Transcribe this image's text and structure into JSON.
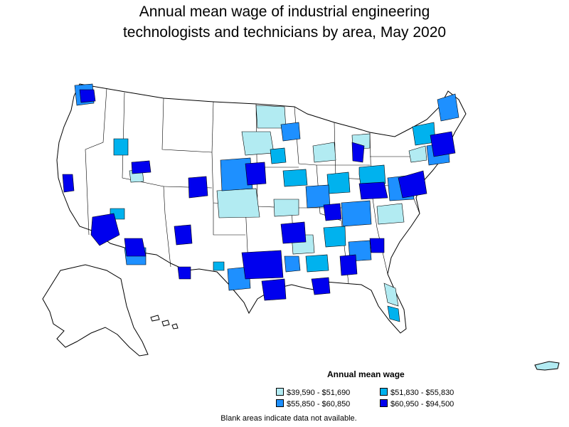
{
  "title_line1": "Annual mean wage of industrial engineering",
  "title_line2": "technologists and technicians by area, May 2020",
  "legend": {
    "title": "Annual mean wage",
    "items": [
      {
        "label": "$39,590 - $51,690",
        "color": "#b2ebf2"
      },
      {
        "label": "$51,830 - $55,830",
        "color": "#00b2ee"
      },
      {
        "label": "$55,850 - $60,850",
        "color": "#1e90ff"
      },
      {
        "label": "$60,950 - $94,500",
        "color": "#0000ee"
      }
    ]
  },
  "footnote": "Blank areas indicate data not available."
}
